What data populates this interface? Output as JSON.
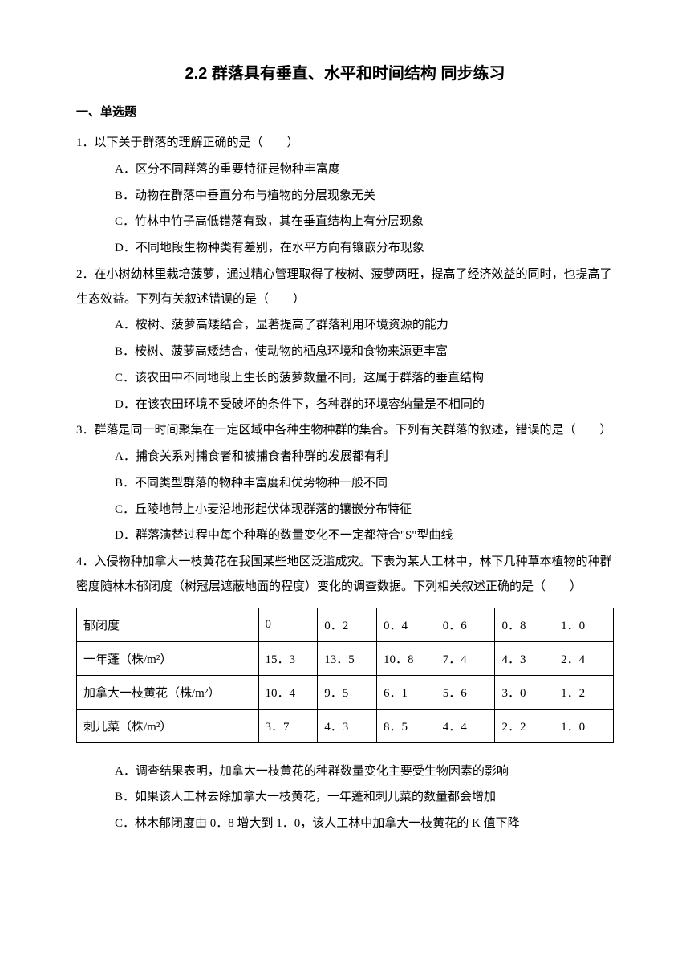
{
  "title": "2.2 群落具有垂直、水平和时间结构 同步练习",
  "section_header": "一、单选题",
  "questions": [
    {
      "text": "1．以下关于群落的理解正确的是（　　）",
      "options": [
        "A．区分不同群落的重要特征是物种丰富度",
        "B．动物在群落中垂直分布与植物的分层现象无关",
        "C．竹林中竹子高低错落有致，其在垂直结构上有分层现象",
        "D．不同地段生物种类有差别，在水平方向有镶嵌分布现象"
      ]
    },
    {
      "text": "2．在小树幼林里栽培菠萝，通过精心管理取得了桉树、菠萝两旺，提高了经济效益的同时，也提高了生态效益。下列有关叙述错误的是（　　）",
      "options": [
        "A．桉树、菠萝高矮结合，显著提高了群落利用环境资源的能力",
        "B．桉树、菠萝高矮结合，使动物的栖息环境和食物来源更丰富",
        "C．该农田中不同地段上生长的菠萝数量不同，这属于群落的垂直结构",
        "D．在该农田环境不受破坏的条件下，各种群的环境容纳量是不相同的"
      ]
    },
    {
      "text": "3．群落是同一时间聚集在一定区域中各种生物种群的集合。下列有关群落的叙述，错误的是（　　）",
      "options": [
        "A．捕食关系对捕食者和被捕食者种群的发展都有利",
        "B．不同类型群落的物种丰富度和优势物种一般不同",
        "C．丘陵地带上小麦沿地形起伏体现群落的镶嵌分布特征",
        "D．群落演替过程中每个种群的数量变化不一定都符合\"S\"型曲线"
      ]
    },
    {
      "text": "4．入侵物种加拿大一枝黄花在我国某些地区泛滥成灾。下表为某人工林中，林下几种草本植物的种群密度随林木郁闭度（树冠层遮蔽地面的程度）变化的调查数据。下列相关叙述正确的是（　　）",
      "options": []
    }
  ],
  "table": {
    "rows": [
      [
        "郁闭度",
        "0",
        "0．2",
        "0．4",
        "0．6",
        "0．8",
        "1．0"
      ],
      [
        "一年蓬（株/m²）",
        "15．3",
        "13．5",
        "10．8",
        "7．4",
        "4．3",
        "2．4"
      ],
      [
        "加拿大一枝黄花（株/m²）",
        "10．4",
        "9．5",
        "6．1",
        "5．6",
        "3．0",
        "1．2"
      ],
      [
        "刺儿菜（株/m²）",
        "3．7",
        "4．3",
        "8．5",
        "4．4",
        "2．2",
        "1．0"
      ]
    ]
  },
  "post_table_options": [
    "A．调查结果表明，加拿大一枝黄花的种群数量变化主要受生物因素的影响",
    "B．如果该人工林去除加拿大一枝黄花，一年蓬和刺儿菜的数量都会增加",
    "C．林木郁闭度由 0．8 增大到 1．0，该人工林中加拿大一枝黄花的 K 值下降"
  ]
}
